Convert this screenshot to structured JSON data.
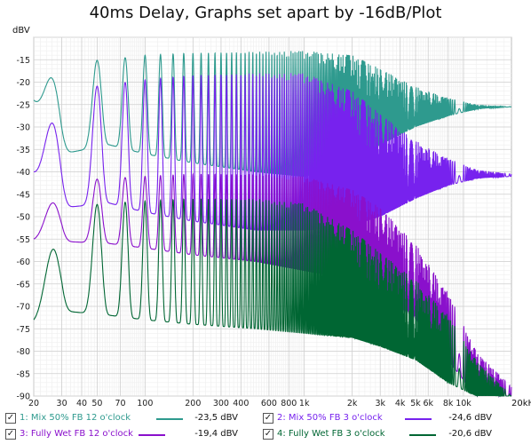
{
  "chart_data": {
    "type": "line",
    "title": "40ms Delay, Graphs set apart by -16dB/Plot",
    "ylabel": "dBV",
    "xunit_label": "20kHz",
    "xscale": "log",
    "xlim": [
      20,
      20000
    ],
    "ylim": [
      -90,
      -10
    ],
    "grid": true,
    "y_ticks": [
      -15,
      -20,
      -25,
      -30,
      -35,
      -40,
      -45,
      -50,
      -55,
      -60,
      -65,
      -70,
      -75,
      -80,
      -85,
      -90
    ],
    "x_ticks": [
      {
        "value": 20,
        "label": "20"
      },
      {
        "value": 30,
        "label": "30"
      },
      {
        "value": 40,
        "label": "40"
      },
      {
        "value": 50,
        "label": "50"
      },
      {
        "value": 70,
        "label": "70"
      },
      {
        "value": 100,
        "label": "100"
      },
      {
        "value": 200,
        "label": "200"
      },
      {
        "value": 300,
        "label": "300"
      },
      {
        "value": 400,
        "label": "400"
      },
      {
        "value": 600,
        "label": "600"
      },
      {
        "value": 800,
        "label": "800"
      },
      {
        "value": 1000,
        "label": "1k"
      },
      {
        "value": 2000,
        "label": "2k"
      },
      {
        "value": 3000,
        "label": "3k"
      },
      {
        "value": 4000,
        "label": "4k"
      },
      {
        "value": 5000,
        "label": "5k"
      },
      {
        "value": 6000,
        "label": "6k"
      },
      {
        "value": 8000,
        "label": "8k"
      },
      {
        "value": 10000,
        "label": "10k"
      }
    ],
    "series": [
      {
        "name": "1: Mix 50% FB 12 o'clock",
        "value_label": "-23,5 dBV",
        "color": "#2e9a8e",
        "envelope": {
          "x": [
            20,
            30,
            60,
            100,
            200,
            500,
            1000,
            2000,
            3000,
            5000,
            8000,
            12000,
            20000
          ],
          "upper": [
            -24,
            -15.5,
            -15,
            -14,
            -13.5,
            -13.2,
            -13,
            -14,
            -17,
            -21,
            -23.5,
            -25,
            -25.5
          ],
          "lower": [
            -24,
            -36,
            -34,
            -36,
            -38,
            -40,
            -41,
            -38,
            -34,
            -30,
            -27.5,
            -26,
            -25.5
          ]
        }
      },
      {
        "name": "2: Mix 50% FB 3 o'clock",
        "value_label": "-24,6 dBV",
        "color": "#7722ee",
        "envelope": {
          "x": [
            20,
            30,
            60,
            100,
            200,
            500,
            1000,
            2000,
            3000,
            5000,
            8000,
            12000,
            20000
          ],
          "upper": [
            -40,
            -22,
            -20.5,
            -19.5,
            -18.5,
            -18,
            -18,
            -22,
            -27,
            -33,
            -37,
            -39.5,
            -40.5
          ],
          "lower": [
            -40,
            -48,
            -47,
            -49,
            -51,
            -53,
            -53,
            -52,
            -50,
            -46,
            -43,
            -41.5,
            -41
          ]
        }
      },
      {
        "name": "3: Fully Wet FB 12 o'clock",
        "value_label": "-19,4 dBV",
        "color": "#8a10cc",
        "envelope": {
          "x": [
            20,
            30,
            60,
            100,
            200,
            500,
            1000,
            2000,
            3000,
            5000,
            8000,
            12000,
            20000
          ],
          "upper": [
            -55,
            -42,
            -41.5,
            -41,
            -40.5,
            -40.5,
            -41,
            -44,
            -48,
            -56,
            -67,
            -80,
            -88
          ],
          "lower": [
            -55,
            -55.5,
            -56,
            -57,
            -58.5,
            -60,
            -62,
            -64,
            -67,
            -73,
            -82,
            -90,
            -90
          ]
        }
      },
      {
        "name": "4: Fully Wet FB 3 o'clock",
        "value_label": "-20,6 dBV",
        "color": "#006633",
        "envelope": {
          "x": [
            20,
            30,
            60,
            100,
            200,
            500,
            1000,
            2000,
            3000,
            5000,
            8000,
            12000,
            20000
          ],
          "upper": [
            -73,
            -48,
            -47,
            -46.5,
            -46,
            -46,
            -47,
            -53,
            -58,
            -64,
            -72,
            -82,
            -90
          ],
          "lower": [
            -73,
            -71,
            -72,
            -73,
            -74,
            -75,
            -76,
            -77,
            -79,
            -82,
            -87,
            -90,
            -90
          ]
        }
      }
    ]
  }
}
